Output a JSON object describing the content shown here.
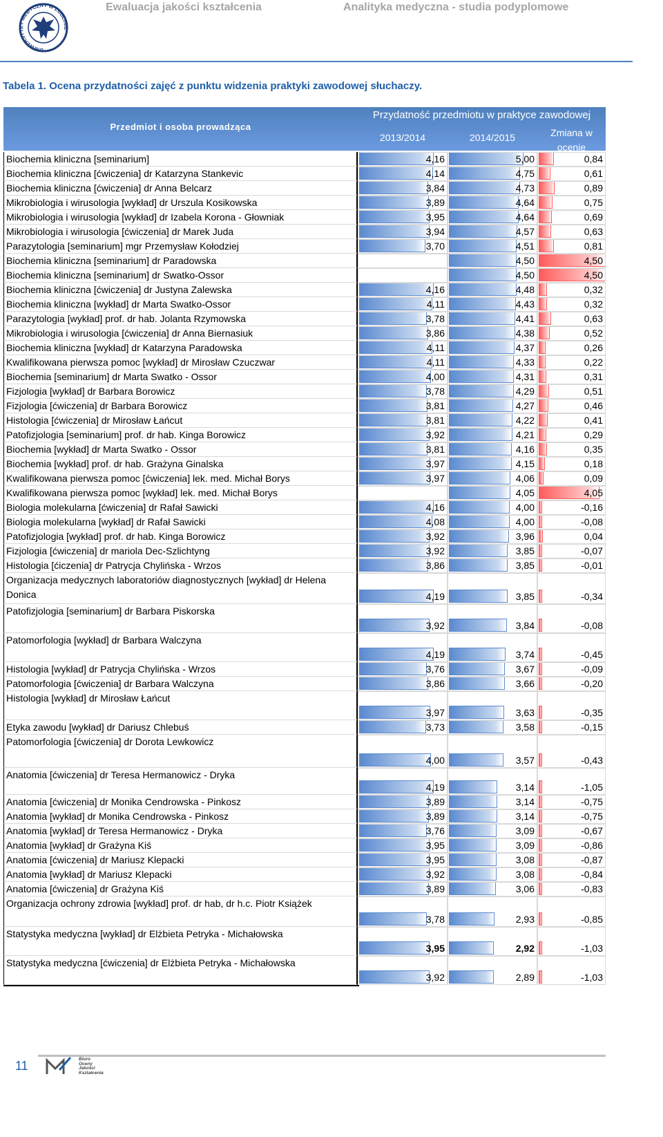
{
  "header": {
    "left": "Ewaluacja jakości kształcenia",
    "right": "Analityka medyczna - studia podyplomowe",
    "logo_text": "UNIWERSYTET MEDYCZNY W LUBLINIE"
  },
  "caption": "Tabela 1. Ocena przydatności zajęć z punktu widzenia praktyki zawodowej słuchaczy.",
  "table": {
    "col_subject": "Przedmiot i osoba prowadząca",
    "group": "Przydatność przedmiotu w praktyce zawodowej",
    "col_a": "2013/2014",
    "col_b": "2014/2015",
    "col_c": "Zmiana w ocenie",
    "rows": [
      [
        "Biochemia kliniczna [seminarium]",
        "4,16",
        "5,00",
        "0,84"
      ],
      [
        "Biochemia kliniczna [ćwiczenia] dr Katarzyna Stankevic",
        "4,14",
        "4,75",
        "0,61"
      ],
      [
        "Biochemia kliniczna [ćwiczenia] dr Anna Belcarz",
        "3,84",
        "4,73",
        "0,89"
      ],
      [
        "Mikrobiologia i wirusologia [wykład] dr Urszula Kosikowska",
        "3,89",
        "4,64",
        "0,75"
      ],
      [
        "Mikrobiologia i wirusologia [wykład] dr Izabela Korona - Głowniak",
        "3,95",
        "4,64",
        "0,69"
      ],
      [
        "Mikrobiologia i wirusologia [ćwiczenia] dr Marek Juda",
        "3,94",
        "4,57",
        "0,63"
      ],
      [
        "Parazytologia [seminarium] mgr Przemysław Kołodziej",
        "3,70",
        "4,51",
        "0,81"
      ],
      [
        "Biochemia kliniczna [seminarium] dr Paradowska",
        null,
        "4,50",
        "4,50"
      ],
      [
        "Biochemia kliniczna [seminarium] dr Swatko-Ossor",
        null,
        "4,50",
        "4,50"
      ],
      [
        "Biochemia kliniczna [ćwiczenia] dr Justyna Zalewska",
        "4,16",
        "4,48",
        "0,32"
      ],
      [
        "Biochemia kliniczna [wykład] dr Marta Swatko-Ossor",
        "4,11",
        "4,43",
        "0,32"
      ],
      [
        "Parazytologia [wykład] prof. dr hab. Jolanta Rzymowska",
        "3,78",
        "4,41",
        "0,63"
      ],
      [
        "Mikrobiologia i wirusologia [ćwiczenia] dr Anna Biernasiuk",
        "3,86",
        "4,38",
        "0,52"
      ],
      [
        "Biochemia kliniczna [wykład] dr Katarzyna Paradowska",
        "4,11",
        "4,37",
        "0,26"
      ],
      [
        "Kwalifikowana pierwsza pomoc [wykład] dr Mirosław Czuczwar",
        "4,11",
        "4,33",
        "0,22"
      ],
      [
        "Biochemia [seminarium] dr Marta Swatko - Ossor",
        "4,00",
        "4,31",
        "0,31"
      ],
      [
        "Fizjologia [wykład] dr Barbara Borowicz",
        "3,78",
        "4,29",
        "0,51"
      ],
      [
        "Fizjologia [ćwiczenia] dr Barbara Borowicz",
        "3,81",
        "4,27",
        "0,46"
      ],
      [
        "Histologia [ćwiczenia] dr Mirosław Łańcut",
        "3,81",
        "4,22",
        "0,41"
      ],
      [
        "Patofizjologia [seminarium] prof. dr hab. Kinga Borowicz",
        "3,92",
        "4,21",
        "0,29"
      ],
      [
        "Biochemia [wykład] dr Marta Swatko - Ossor",
        "3,81",
        "4,16",
        "0,35"
      ],
      [
        "Biochemia [wykład] prof. dr hab. Grażyna Ginalska",
        "3,97",
        "4,15",
        "0,18"
      ],
      [
        "Kwalifikowana pierwsza pomoc [ćwiczenia] lek. med. Michał Borys",
        "3,97",
        "4,06",
        "0,09"
      ],
      [
        "Kwalifikowana pierwsza pomoc [wykład] lek. med. Michał Borys",
        null,
        "4,05",
        "4,05"
      ],
      [
        "Biologia molekularna [ćwiczenia] dr Rafał Sawicki",
        "4,16",
        "4,00",
        "-0,16"
      ],
      [
        "Biologia molekularna [wykład] dr Rafał Sawicki",
        "4,08",
        "4,00",
        "-0,08"
      ],
      [
        "Patofizjologia [wykład] prof. dr hab. Kinga Borowicz",
        "3,92",
        "3,96",
        "0,04"
      ],
      [
        "Fizjologia [ćwiczenia] dr mariola Dec-Szlichtyng",
        "3,92",
        "3,85",
        "-0,07"
      ],
      [
        "Histologia [ćiczenia] dr Patrycja Chylińska - Wrzos",
        "3,86",
        "3,85",
        "-0,01"
      ],
      [
        "Organizacja medycznych laboratoriów diagnostycznych [wykład] dr Helena Donica",
        "4,19",
        "3,85",
        "-0,34"
      ],
      [
        "Patofizjologia [seminarium] dr Barbara Piskorska",
        "3,92",
        "3,84",
        "-0,08"
      ],
      [
        "Patomorfologia [wykład] dr Barbara Walczyna",
        "4,19",
        "3,74",
        "-0,45"
      ],
      [
        "Histologia [wykład] dr Patrycja Chylińska - Wrzos",
        "3,76",
        "3,67",
        "-0,09"
      ],
      [
        "Patomorfologia [ćwiczenia] dr Barbara Walczyna",
        "3,86",
        "3,66",
        "-0,20"
      ],
      [
        "Histologia [wykład] dr Mirosław Łańcut",
        "3,97",
        "3,63",
        "-0,35"
      ],
      [
        "Etyka zawodu [wykład] dr Dariusz Chlebuś",
        "3,73",
        "3,58",
        "-0,15"
      ],
      [
        "Patomorfologia [ćwiczenia] dr Dorota Lewkowicz",
        "4,00",
        "3,57",
        "-0,43"
      ],
      [
        "Anatomia [ćwiczenia] dr Teresa Hermanowicz - Dryka",
        "4,19",
        "3,14",
        "-1,05"
      ],
      [
        "Anatomia [ćwiczenia] dr Monika Cendrowska - Pinkosz",
        "3,89",
        "3,14",
        "-0,75"
      ],
      [
        "Anatomia [wykład] dr Monika Cendrowska - Pinkosz",
        "3,89",
        "3,14",
        "-0,75"
      ],
      [
        "Anatomia [wykład] dr Teresa Hermanowicz - Dryka",
        "3,76",
        "3,09",
        "-0,67"
      ],
      [
        "Anatomia [wykład] dr Grażyna Kiś",
        "3,95",
        "3,09",
        "-0,86"
      ],
      [
        "Anatomia [ćwiczenia] dr Mariusz Klepacki",
        "3,95",
        "3,08",
        "-0,87"
      ],
      [
        "Anatomia [wykład] dr Mariusz Klepacki",
        "3,92",
        "3,08",
        "-0,84"
      ],
      [
        "Anatomia [ćwiczenia] dr Grażyna Kiś",
        "3,89",
        "3,06",
        "-0,83"
      ],
      [
        "Organizacja ochrony zdrowia [wykład] prof. dr hab, dr h.c. Piotr Książek",
        "3,78",
        "2,93",
        "-0,85"
      ],
      [
        "Statystyka medyczna [wykład] dr Elżbieta Petryka - Michałowska",
        "3,95",
        "2,92",
        "-1,03"
      ],
      [
        "Statystyka medyczna [ćwiczenia] dr Elżbieta Petryka - Michałowska",
        "3,92",
        "2,89",
        "-1,03"
      ]
    ]
  },
  "footer": {
    "page": "11",
    "logo_lines": [
      "Biuro",
      "Oceny",
      "Jakości",
      "Kształcenia"
    ]
  }
}
